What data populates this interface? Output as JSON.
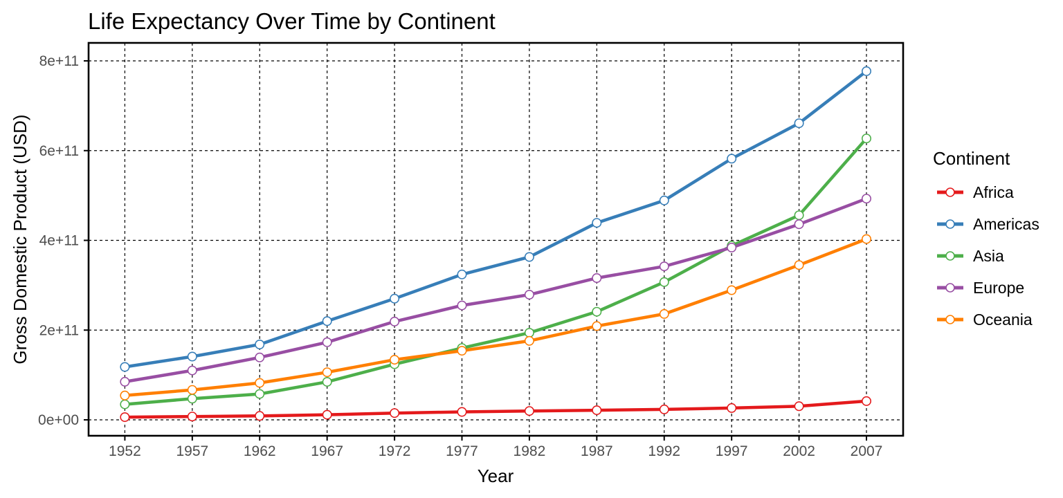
{
  "chart_data": {
    "type": "line",
    "title": "Life Expectancy Over Time by Continent",
    "xlabel": "Year",
    "ylabel": "Gross Domestic Product (USD)",
    "x": [
      1952,
      1957,
      1962,
      1967,
      1972,
      1977,
      1982,
      1987,
      1992,
      1997,
      2002,
      2007
    ],
    "x_tick_labels": [
      "1952",
      "1957",
      "1962",
      "1967",
      "1972",
      "1977",
      "1982",
      "1987",
      "1992",
      "1997",
      "2002",
      "2007"
    ],
    "y_ticks": [
      0,
      200000000000.0,
      400000000000.0,
      600000000000.0,
      800000000000.0
    ],
    "y_tick_labels": [
      "0e+00",
      "2e+11",
      "4e+11",
      "6e+11",
      "8e+11"
    ],
    "xlim": [
      1949.31,
      2009.72
    ],
    "ylim": [
      -35450000000.0,
      840100000000.0
    ],
    "grid": "dashed-black-major",
    "marker": "open-circle-white-fill",
    "series": [
      {
        "name": "Africa",
        "color": "#E41A1C",
        "values": [
          5990000000.0,
          7360000000.0,
          8780000000.0,
          11400000000.0,
          15100000000.0,
          17800000000.0,
          19800000000.0,
          21400000000.0,
          23300000000.0,
          26400000000.0,
          30400000000.0,
          41800000000.0
        ]
      },
      {
        "name": "Americas",
        "color": "#377EB8",
        "values": [
          118000000000.0,
          141000000000.0,
          168000000000.0,
          220000000000.0,
          270000000000.0,
          324000000000.0,
          363000000000.0,
          439000000000.0,
          489000000000.0,
          582000000000.0,
          661000000000.0,
          777000000000.0
        ]
      },
      {
        "name": "Asia",
        "color": "#4DAF4A",
        "values": [
          34600000000.0,
          47100000000.0,
          57700000000.0,
          84700000000.0,
          124000000000.0,
          160000000000.0,
          194000000000.0,
          241000000000.0,
          307000000000.0,
          388000000000.0,
          456000000000.0,
          627000000000.0
        ]
      },
      {
        "name": "Europe",
        "color": "#984EA3",
        "values": [
          85000000000.0,
          110000000000.0,
          139000000000.0,
          173000000000.0,
          219000000000.0,
          255000000000.0,
          279000000000.0,
          316000000000.0,
          342000000000.0,
          384000000000.0,
          436000000000.0,
          493000000000.0
        ]
      },
      {
        "name": "Oceania",
        "color": "#FF7F00",
        "values": [
          54200000000.0,
          66800000000.0,
          82300000000.0,
          106000000000.0,
          134000000000.0,
          154000000000.0,
          176000000000.0,
          209000000000.0,
          236000000000.0,
          289000000000.0,
          345000000000.0,
          403000000000.0
        ]
      }
    ],
    "legend": {
      "title": "Continent",
      "position": "right",
      "entries": [
        "Africa",
        "Americas",
        "Asia",
        "Europe",
        "Oceania"
      ]
    }
  },
  "style_colors": {
    "tick_label": "#4d4d4d",
    "grid": "#000000",
    "panel_border": "#000000",
    "background": "#ffffff"
  }
}
